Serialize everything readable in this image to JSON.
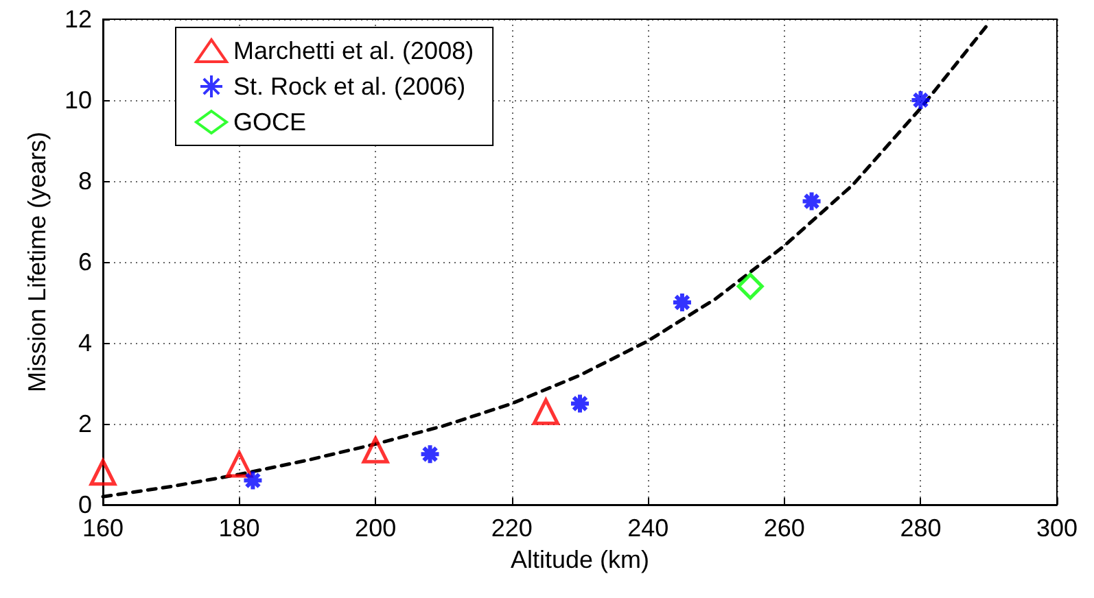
{
  "chart_data": {
    "type": "scatter",
    "xlabel": "Altitude (km)",
    "ylabel": "Mission Lifetime (years)",
    "xlim": [
      160,
      300
    ],
    "xticks": [
      160,
      180,
      200,
      220,
      240,
      260,
      280,
      300
    ],
    "ylim": [
      0,
      12
    ],
    "yticks": [
      0,
      2,
      4,
      6,
      8,
      10,
      12
    ],
    "grid": true,
    "legend": "top left",
    "series": [
      {
        "name": "Marchetti et al. (2008)",
        "color": "#ff0000",
        "marker": "triangle",
        "x": [
          160,
          180,
          200,
          225
        ],
        "values": [
          0.8,
          1.0,
          1.35,
          2.3
        ]
      },
      {
        "name": "St. Rock et al. (2006)",
        "color": "#0000ff",
        "marker": "cross",
        "x": [
          182,
          208,
          230,
          245,
          264,
          280
        ],
        "values": [
          0.6,
          1.25,
          2.5,
          5.0,
          7.5,
          10.0
        ]
      },
      {
        "name": "GOCE",
        "color": "#00ff00",
        "marker": "diamond",
        "x": [
          255
        ],
        "values": [
          5.4
        ]
      },
      {
        "type": "line",
        "color": "#000000",
        "marker": "none",
        "line_style": "dashed",
        "x": [
          160,
          170,
          180,
          190,
          200,
          210,
          220,
          230,
          240,
          250,
          260,
          270,
          280,
          290
        ],
        "values": [
          0.2,
          0.45,
          0.75,
          1.1,
          1.5,
          1.95,
          2.5,
          3.2,
          4.05,
          5.1,
          6.4,
          7.9,
          9.8,
          11.9
        ]
      }
    ]
  }
}
